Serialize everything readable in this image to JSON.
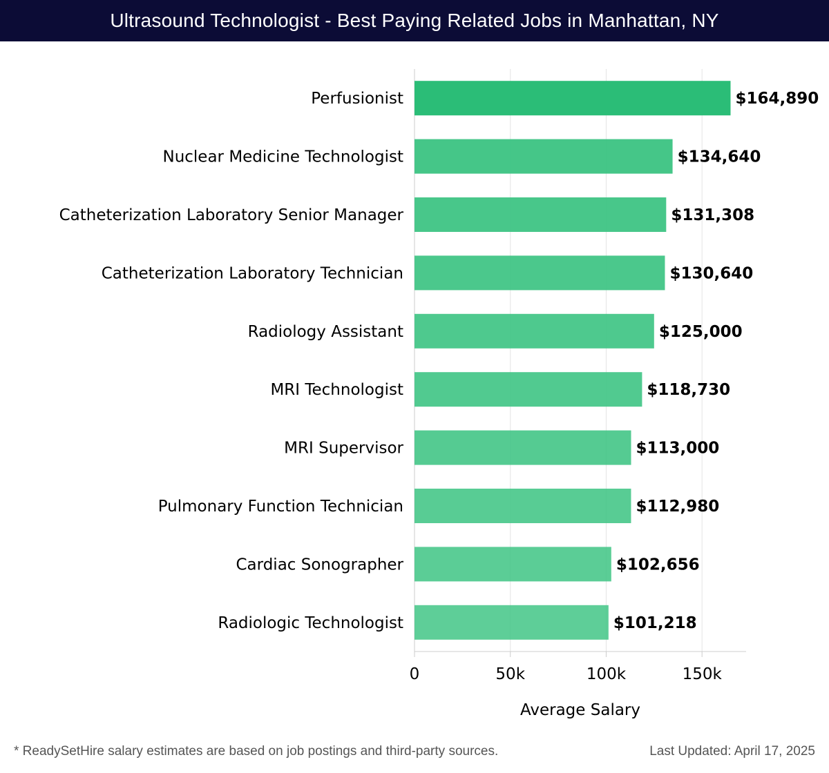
{
  "header": {
    "title": "Ultrasound Technologist - Best Paying Related Jobs in Manhattan, NY"
  },
  "chart_data": {
    "type": "bar",
    "orientation": "horizontal",
    "title": "Ultrasound Technologist - Best Paying Related Jobs in Manhattan, NY",
    "xlabel": "Average Salary",
    "ylabel": "",
    "xlim": [
      0,
      173000
    ],
    "xticks": [
      0,
      50000,
      100000,
      150000
    ],
    "xtick_labels": [
      "0",
      "50k",
      "100k",
      "150k"
    ],
    "grid": "vertical",
    "categories": [
      "Perfusionist",
      "Nuclear Medicine Technologist",
      "Catheterization Laboratory Senior Manager",
      "Catheterization Laboratory Technician",
      "Radiology Assistant",
      "MRI Technologist",
      "MRI Supervisor",
      "Pulmonary Function Technician",
      "Cardiac Sonographer",
      "Radiologic Technologist"
    ],
    "values": [
      164890,
      134640,
      131308,
      130640,
      125000,
      118730,
      113000,
      112980,
      102656,
      101218
    ],
    "value_labels": [
      "$164,890",
      "$134,640",
      "$131,308",
      "$130,640",
      "$125,000",
      "$118,730",
      "$113,000",
      "$112,980",
      "$102,656",
      "$101,218"
    ],
    "colors": {
      "top_bar": "#2bbd77",
      "bars": "#3ec484",
      "grid": "#e3e3e3",
      "axis": "#cccccc",
      "text": "#000000"
    }
  },
  "footer": {
    "note": "* ReadySetHire salary estimates are based on job postings and third-party sources.",
    "updated": "Last Updated: April 17, 2025"
  }
}
